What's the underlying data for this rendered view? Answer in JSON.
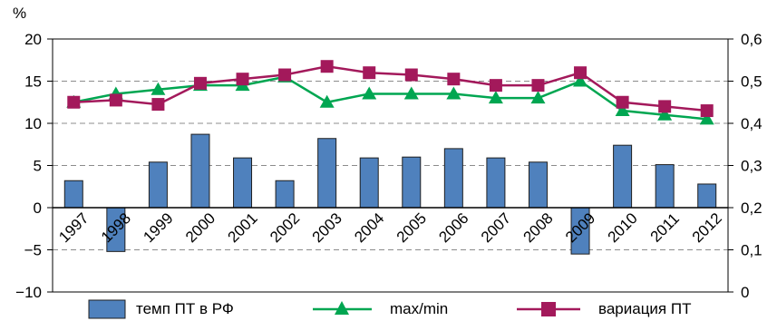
{
  "chart_data": {
    "type": "bar+line",
    "ylabel_left": "%",
    "ylim_left": [
      -10,
      20
    ],
    "yticks_left": [
      "−10",
      "−5",
      "0",
      "5",
      "10",
      "15",
      "20"
    ],
    "ylim_right": [
      0,
      0.6
    ],
    "yticks_right": [
      "0",
      "0,1",
      "0,2",
      "0,3",
      "0,4",
      "0,5",
      "0,6"
    ],
    "grid": "dashed horizontal",
    "categories": [
      "1997",
      "1998",
      "1999",
      "2000",
      "2001",
      "2002",
      "2003",
      "2004",
      "2005",
      "2006",
      "2007",
      "2008",
      "2009",
      "2010",
      "2011",
      "2012"
    ],
    "series": [
      {
        "name": "темп ПТ в РФ",
        "kind": "bar",
        "axis": "left",
        "color": "#4f81bd",
        "values": [
          3.2,
          -5.2,
          5.4,
          8.7,
          5.9,
          3.2,
          8.2,
          5.9,
          6.0,
          7.0,
          5.9,
          5.4,
          -5.5,
          7.4,
          5.1,
          2.8
        ]
      },
      {
        "name": "max/min",
        "kind": "line",
        "marker": "triangle",
        "axis": "right",
        "color": "#00a651",
        "values": [
          0.45,
          0.47,
          0.48,
          0.49,
          0.49,
          0.51,
          0.45,
          0.47,
          0.47,
          0.47,
          0.46,
          0.46,
          0.5,
          0.43,
          0.42,
          0.41
        ]
      },
      {
        "name": "вариация ПТ",
        "kind": "line",
        "marker": "square",
        "axis": "right",
        "color": "#a3195b",
        "values": [
          0.45,
          0.455,
          0.445,
          0.495,
          0.505,
          0.515,
          0.535,
          0.52,
          0.515,
          0.505,
          0.49,
          0.49,
          0.52,
          0.45,
          0.44,
          0.43
        ]
      }
    ],
    "legend_position": "bottom"
  }
}
